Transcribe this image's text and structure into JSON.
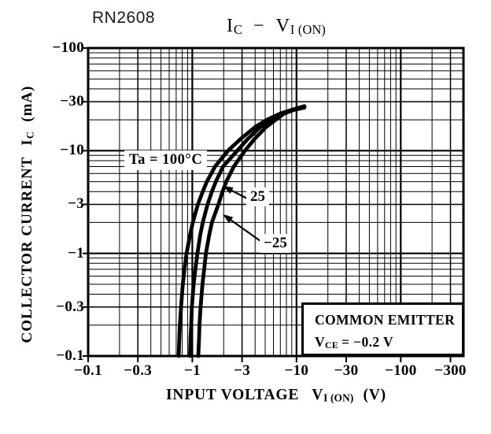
{
  "part_number": "RN2608",
  "title": {
    "y_symbol": "I",
    "y_sub": "C",
    "separator": "−",
    "x_symbol": "V",
    "x_sub": "I (ON)"
  },
  "y_axis": {
    "label": "COLLECTOR CURRENT",
    "symbol": "I",
    "symbol_sub": "C",
    "unit": "(mA)"
  },
  "x_axis": {
    "label": "INPUT VOLTAGE",
    "symbol": "V",
    "symbol_sub": "I (ON)",
    "unit": "(V)"
  },
  "condition_box": {
    "line1": "COMMON EMITTER",
    "symbol": "V",
    "symbol_sub": "CE",
    "value": "= −0.2 V"
  },
  "chart_data": {
    "type": "line",
    "title": "IC − VI(ON)",
    "xlabel": "INPUT VOLTAGE VI(ON) (V)",
    "ylabel": "COLLECTOR CURRENT IC (mA)",
    "x_scale": "log",
    "y_scale": "log",
    "x_range_abs": [
      0.1,
      400
    ],
    "y_range_abs": [
      0.1,
      100
    ],
    "x_ticks": [
      {
        "label": "−0.1",
        "value": 0.1
      },
      {
        "label": "−0.3",
        "value": 0.3
      },
      {
        "label": "−1",
        "value": 1
      },
      {
        "label": "−3",
        "value": 3
      },
      {
        "label": "−10",
        "value": 10
      },
      {
        "label": "−30",
        "value": 30
      },
      {
        "label": "−100",
        "value": 100
      },
      {
        "label": "−300",
        "value": 300
      }
    ],
    "y_ticks": [
      {
        "label": "−100",
        "value": 100
      },
      {
        "label": "−30",
        "value": 30
      },
      {
        "label": "−10",
        "value": 10
      },
      {
        "label": "−3",
        "value": 3
      },
      {
        "label": "−1",
        "value": 1
      },
      {
        "label": "−0.3",
        "value": 0.3
      },
      {
        "label": "−0.1",
        "value": 0.1
      }
    ],
    "grid": "log-log graph paper, major decade lines heavy, minor lines light, black on white",
    "legend_position": "labels with arrows inside plot",
    "conditions": "COMMON EMITTER, VCE = −0.2 V",
    "series": [
      {
        "name": "Ta = 100°C",
        "temp_c": 100,
        "points_v_ic_mA": [
          [
            -0.74,
            -0.1
          ],
          [
            -0.75,
            -0.15
          ],
          [
            -0.76,
            -0.2
          ],
          [
            -0.78,
            -0.3
          ],
          [
            -0.81,
            -0.5
          ],
          [
            -0.84,
            -0.7
          ],
          [
            -0.88,
            -1
          ],
          [
            -0.95,
            -1.5
          ],
          [
            -1.01,
            -2
          ],
          [
            -1.13,
            -3
          ],
          [
            -1.26,
            -4
          ],
          [
            -1.38,
            -5
          ],
          [
            -1.65,
            -7
          ],
          [
            -2.2,
            -10
          ],
          [
            -2.9,
            -13
          ],
          [
            -4.0,
            -17
          ],
          [
            -5.2,
            -20
          ],
          [
            -7.0,
            -23
          ],
          [
            -9.0,
            -25
          ],
          [
            -11.9,
            -27.2
          ]
        ]
      },
      {
        "name": "25",
        "temp_c": 25,
        "points_v_ic_mA": [
          [
            -0.95,
            -0.1
          ],
          [
            -0.96,
            -0.15
          ],
          [
            -0.975,
            -0.2
          ],
          [
            -0.99,
            -0.3
          ],
          [
            -1.03,
            -0.5
          ],
          [
            -1.07,
            -0.7
          ],
          [
            -1.12,
            -1
          ],
          [
            -1.19,
            -1.5
          ],
          [
            -1.26,
            -2
          ],
          [
            -1.4,
            -3
          ],
          [
            -1.54,
            -4
          ],
          [
            -1.68,
            -5
          ],
          [
            -1.97,
            -7
          ],
          [
            -2.7,
            -10
          ],
          [
            -3.4,
            -13
          ],
          [
            -4.5,
            -17
          ],
          [
            -5.7,
            -20
          ],
          [
            -7.2,
            -23
          ],
          [
            -9.2,
            -25
          ],
          [
            -11.9,
            -26.8
          ]
        ]
      },
      {
        "name": "−25",
        "temp_c": -25,
        "points_v_ic_mA": [
          [
            -1.14,
            -0.1
          ],
          [
            -1.16,
            -0.15
          ],
          [
            -1.17,
            -0.2
          ],
          [
            -1.2,
            -0.3
          ],
          [
            -1.25,
            -0.5
          ],
          [
            -1.3,
            -0.7
          ],
          [
            -1.35,
            -1
          ],
          [
            -1.45,
            -1.5
          ],
          [
            -1.54,
            -2
          ],
          [
            -1.78,
            -3
          ],
          [
            -1.95,
            -4
          ],
          [
            -2.12,
            -5
          ],
          [
            -2.5,
            -7
          ],
          [
            -3.2,
            -10
          ],
          [
            -3.95,
            -13
          ],
          [
            -5.1,
            -17
          ],
          [
            -6.3,
            -20
          ],
          [
            -7.6,
            -23
          ],
          [
            -9.4,
            -25
          ],
          [
            -11.9,
            -26.3
          ]
        ]
      }
    ],
    "annotations": [
      {
        "text": "Ta = 100°C",
        "targets_series": "Ta = 100°C",
        "arrow": false
      },
      {
        "text": "25",
        "targets_series": "25",
        "arrow": true
      },
      {
        "text": "−25",
        "targets_series": "−25",
        "arrow": true
      }
    ],
    "colors": {
      "ink": "#000000",
      "background": "#ffffff"
    }
  }
}
